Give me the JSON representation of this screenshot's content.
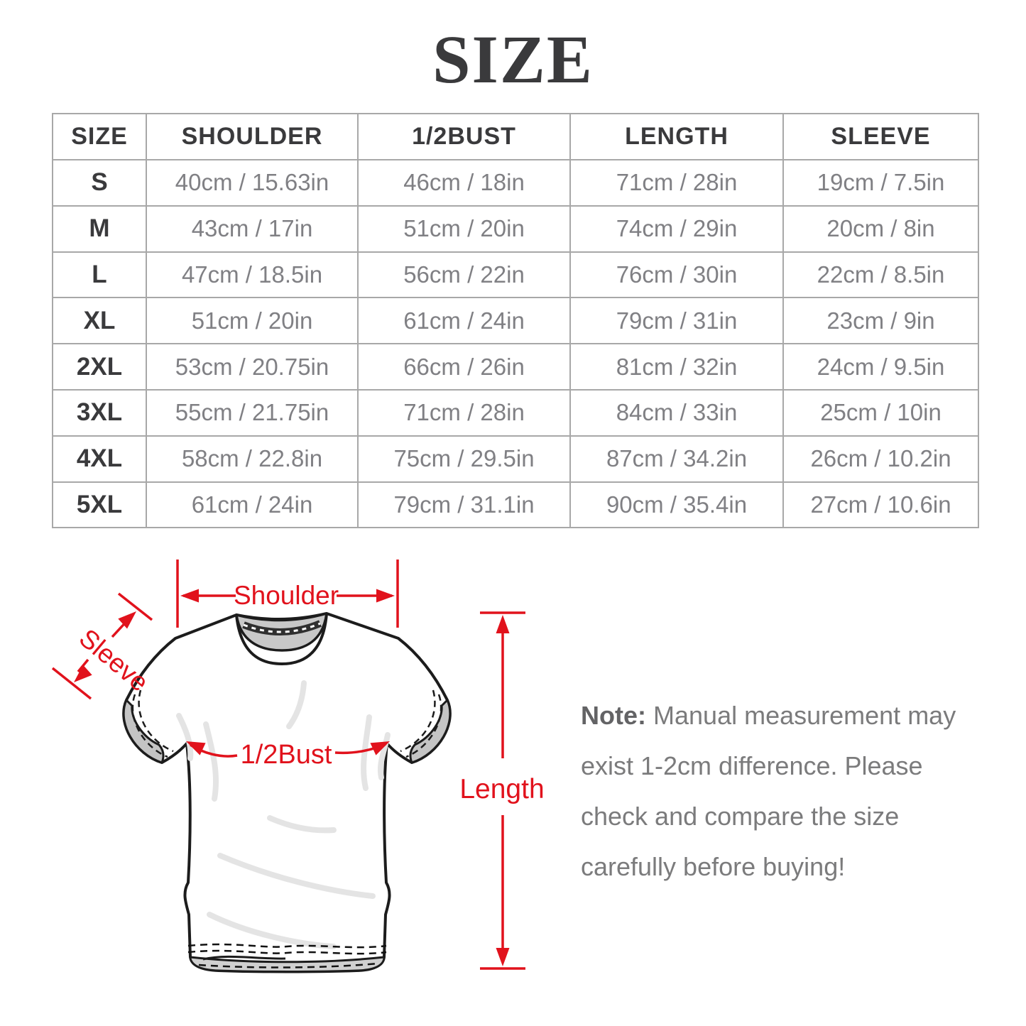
{
  "title": "SIZE",
  "colors": {
    "accent_red": "#e1121c",
    "heading_dark": "#3a3a3c",
    "value_gray": "#808084",
    "table_border": "#a8a8a8",
    "note_gray": "#7b7b7c"
  },
  "table": {
    "headers": [
      "SIZE",
      "SHOULDER",
      "1/2BUST",
      "LENGTH",
      "SLEEVE"
    ],
    "row_keys": [
      "shoulder",
      "half_bust",
      "length",
      "sleeve"
    ],
    "rows": [
      {
        "size": "S",
        "shoulder": "40cm / 15.63in",
        "half_bust": "46cm / 18in",
        "length": "71cm / 28in",
        "sleeve": "19cm / 7.5in"
      },
      {
        "size": "M",
        "shoulder": "43cm / 17in",
        "half_bust": "51cm / 20in",
        "length": "74cm / 29in",
        "sleeve": "20cm / 8in"
      },
      {
        "size": "L",
        "shoulder": "47cm / 18.5in",
        "half_bust": "56cm / 22in",
        "length": "76cm / 30in",
        "sleeve": "22cm / 8.5in"
      },
      {
        "size": "XL",
        "shoulder": "51cm / 20in",
        "half_bust": "61cm / 24in",
        "length": "79cm / 31in",
        "sleeve": "23cm / 9in"
      },
      {
        "size": "2XL",
        "shoulder": "53cm / 20.75in",
        "half_bust": "66cm / 26in",
        "length": "81cm / 32in",
        "sleeve": "24cm / 9.5in"
      },
      {
        "size": "3XL",
        "shoulder": "55cm / 21.75in",
        "half_bust": "71cm / 28in",
        "length": "84cm / 33in",
        "sleeve": "25cm / 10in"
      },
      {
        "size": "4XL",
        "shoulder": "58cm / 22.8in",
        "half_bust": "75cm / 29.5in",
        "length": "87cm / 34.2in",
        "sleeve": "26cm / 10.2in"
      },
      {
        "size": "5XL",
        "shoulder": "61cm / 24in",
        "half_bust": "79cm / 31.1in",
        "length": "90cm / 35.4in",
        "sleeve": "27cm / 10.6in"
      }
    ]
  },
  "diagram": {
    "shoulder_label": "Shoulder",
    "sleeve_label": "Sleeve",
    "half_bust_label": "1/2Bust",
    "length_label": "Length"
  },
  "note": {
    "label": "Note:",
    "lines": [
      "Manual measurement may",
      "exist 1-2cm difference. Please",
      "check and compare the size",
      "carefully before buying!"
    ]
  }
}
